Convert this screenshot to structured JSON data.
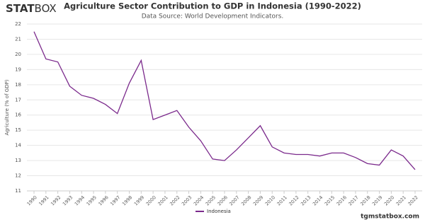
{
  "logo": {
    "bold": "STAT",
    "light": "BOX"
  },
  "footer": "tgmstatbox.com",
  "chart_data": {
    "type": "line",
    "title": "Agriculture Sector Contribution to GDP in Indonesia (1990-2022)",
    "subtitle": "Data Source: World Development Indicators.",
    "y_label": "Agriculture (% of GDP)",
    "categories": [
      "1990",
      "1991",
      "1992",
      "1993",
      "1994",
      "1995",
      "1996",
      "1997",
      "1998",
      "1999",
      "2000",
      "2001",
      "2002",
      "2003",
      "2004",
      "2005",
      "2006",
      "2007",
      "2008",
      "2009",
      "2010",
      "2011",
      "2012",
      "2013",
      "2014",
      "2015",
      "2016",
      "2017",
      "2018",
      "2019",
      "2020",
      "2021",
      "2022"
    ],
    "series": [
      {
        "name": "Indonesia",
        "color": "#7b2a8c",
        "values": [
          21.5,
          19.7,
          19.5,
          17.9,
          17.3,
          17.1,
          16.7,
          16.1,
          18.1,
          19.6,
          15.7,
          16.0,
          16.3,
          15.2,
          14.3,
          13.1,
          13.0,
          13.7,
          14.5,
          15.3,
          13.9,
          13.5,
          13.4,
          13.4,
          13.3,
          13.5,
          13.5,
          13.2,
          12.8,
          12.7,
          13.7,
          13.3,
          12.4
        ]
      }
    ],
    "ylim": [
      11,
      22
    ],
    "yticks": [
      11,
      12,
      13,
      14,
      15,
      16,
      17,
      18,
      19,
      20,
      21,
      22
    ],
    "grid": true,
    "legend": "bottom"
  }
}
